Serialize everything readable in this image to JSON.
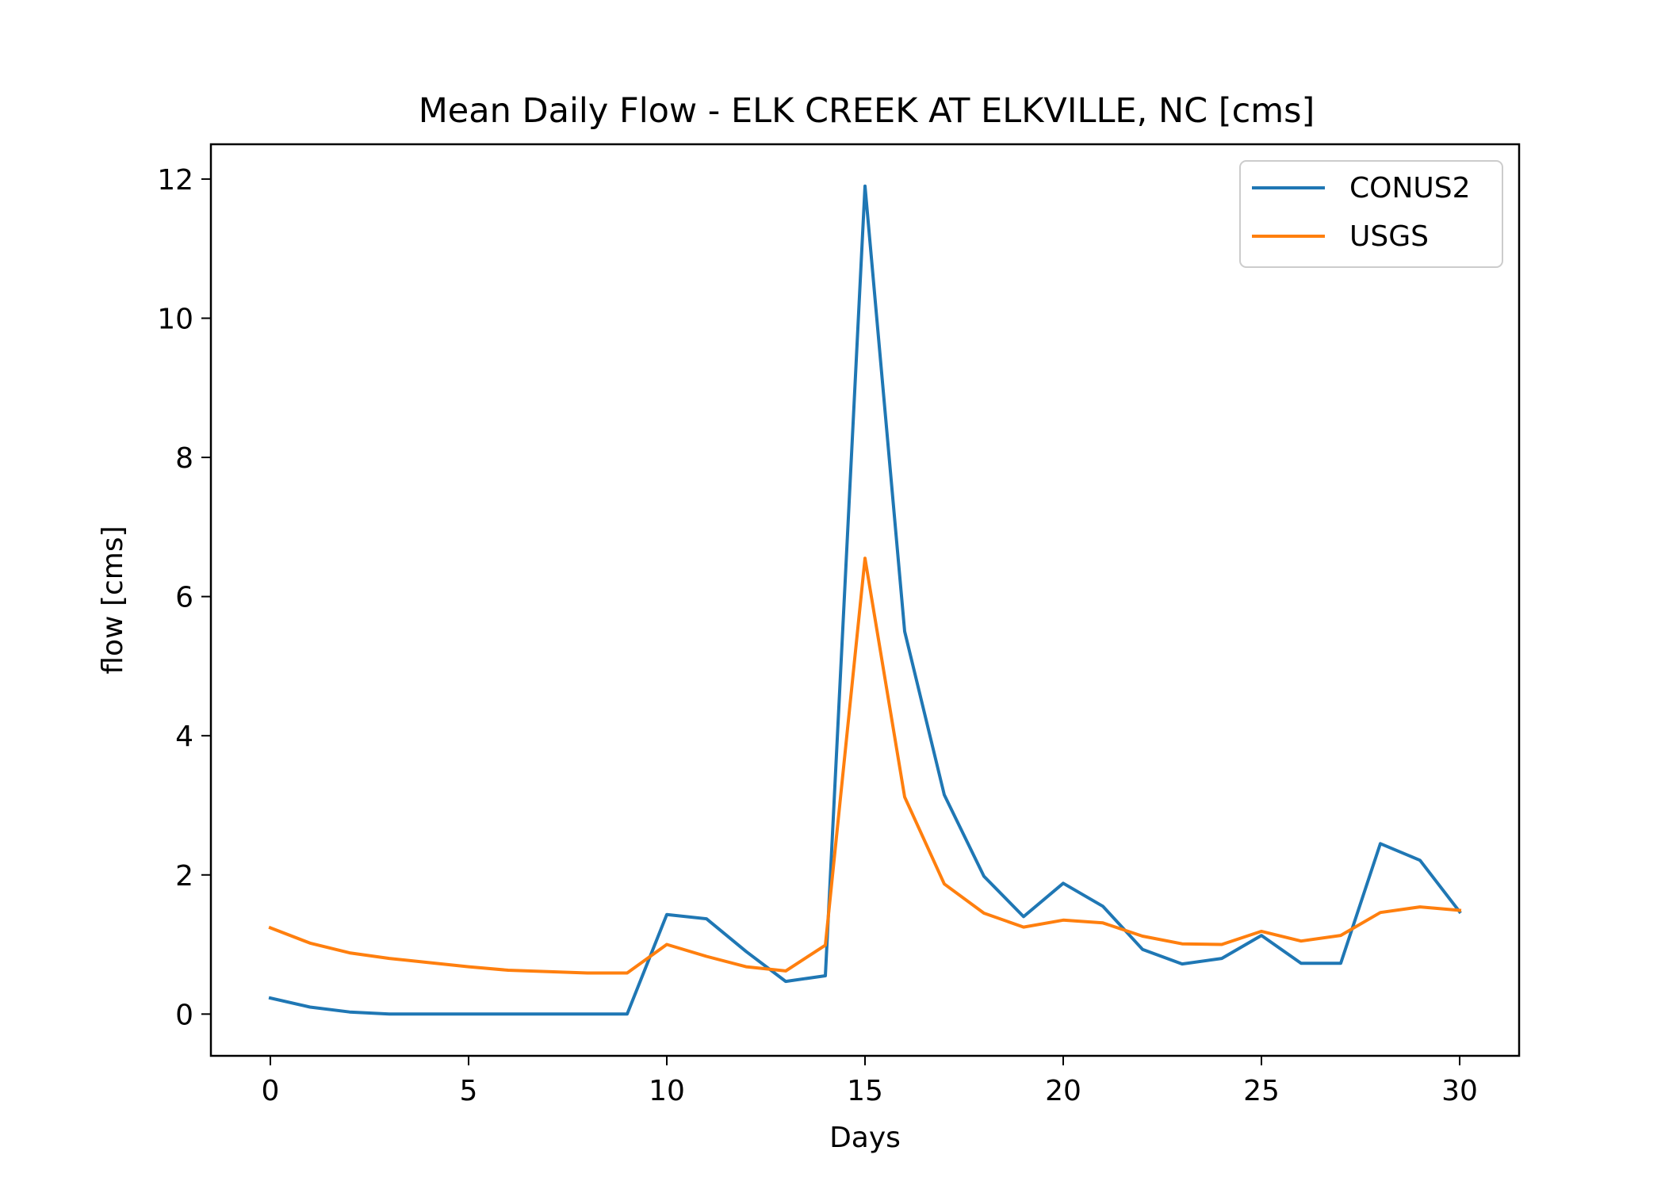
{
  "chart_data": {
    "type": "line",
    "title": "Mean Daily Flow - ELK CREEK AT ELKVILLE, NC [cms]",
    "xlabel": "Days",
    "ylabel": "flow [cms]",
    "x": [
      0,
      1,
      2,
      3,
      4,
      5,
      6,
      7,
      8,
      9,
      10,
      11,
      12,
      13,
      14,
      15,
      16,
      17,
      18,
      19,
      20,
      21,
      22,
      23,
      24,
      25,
      26,
      27,
      28,
      29,
      30
    ],
    "xlim": [
      -1.5,
      31.5
    ],
    "ylim": [
      -0.6,
      12.5
    ],
    "xticks": [
      0,
      5,
      10,
      15,
      20,
      25,
      30
    ],
    "yticks": [
      0,
      2,
      4,
      6,
      8,
      10,
      12
    ],
    "grid": false,
    "legend_position": "top-right",
    "series": [
      {
        "name": "CONUS2",
        "color": "#1f77b4",
        "values": [
          0.23,
          0.1,
          0.03,
          0.0,
          0.0,
          0.0,
          0.0,
          0.0,
          0.0,
          0.0,
          1.43,
          1.37,
          0.9,
          0.47,
          0.55,
          11.9,
          5.5,
          3.15,
          1.98,
          1.4,
          1.88,
          1.55,
          0.93,
          0.72,
          0.8,
          1.13,
          0.73,
          0.73,
          2.45,
          2.21,
          1.47
        ]
      },
      {
        "name": "USGS",
        "color": "#ff7f0e",
        "values": [
          1.24,
          1.02,
          0.88,
          0.8,
          0.74,
          0.68,
          0.63,
          0.61,
          0.59,
          0.59,
          1.0,
          0.83,
          0.68,
          0.62,
          0.99,
          6.55,
          3.12,
          1.87,
          1.45,
          1.25,
          1.35,
          1.31,
          1.12,
          1.01,
          1.0,
          1.19,
          1.05,
          1.13,
          1.46,
          1.54,
          1.49
        ]
      }
    ]
  }
}
